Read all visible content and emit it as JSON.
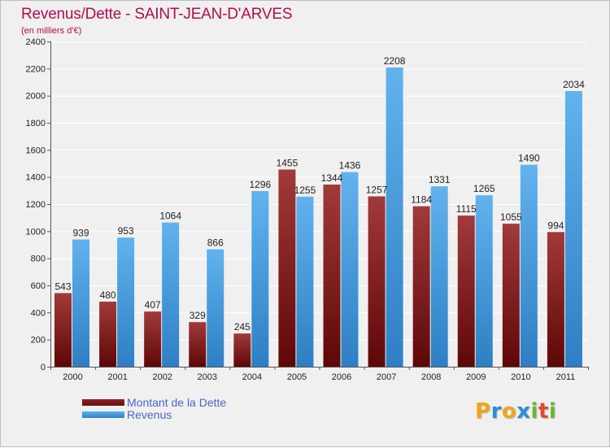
{
  "colors": {
    "title": "#b40d4a",
    "legend_text": "#4a66c9",
    "dette": "#6b0c0c",
    "dette_light": "#a23a3a",
    "revenus": "#2e7fc4",
    "revenus_light": "#62b2ee",
    "grid": "#ffffff",
    "axis_text": "#222222"
  },
  "chart_data": {
    "type": "bar",
    "title": "Revenus/Dette - SAINT-JEAN-D'ARVES",
    "subtitle": "(en milliers d'€)",
    "xlabel": "",
    "ylabel": "",
    "ylim": [
      0,
      2400
    ],
    "yticks": [
      0,
      200,
      400,
      600,
      800,
      1000,
      1200,
      1400,
      1600,
      1800,
      2000,
      2200,
      2400
    ],
    "categories": [
      "2000",
      "2001",
      "2002",
      "2003",
      "2004",
      "2005",
      "2006",
      "2007",
      "2008",
      "2009",
      "2010",
      "2011"
    ],
    "series": [
      {
        "name": "Montant de la Dette",
        "key": "dette",
        "values": [
          543,
          480,
          407,
          329,
          245,
          1455,
          1344,
          1257,
          1184,
          1115,
          1055,
          994
        ]
      },
      {
        "name": "Revenus",
        "key": "revenus",
        "values": [
          939,
          953,
          1064,
          866,
          1296,
          1255,
          1436,
          2208,
          1331,
          1265,
          1490,
          2034
        ]
      }
    ],
    "grid": true,
    "legend_position": "bottom-left"
  },
  "logo": {
    "letters": [
      "P",
      "r",
      "o",
      "x",
      "i",
      "t",
      "i"
    ],
    "letter_colors": [
      "#f2a51a",
      "#2a8fd6",
      "#f2a51a",
      "#2a8fd6",
      "#6bb536",
      "#e4482e",
      "#6bb536"
    ]
  }
}
